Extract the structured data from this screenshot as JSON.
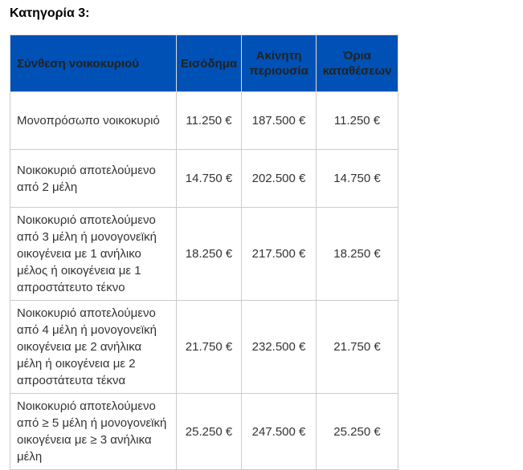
{
  "title": "Κατηγορία 3:",
  "headers": [
    "Σύνθεση νοικοκυριού",
    "Εισόδημα",
    "Ακίνητη περιουσία",
    "Όρια καταθέσεων"
  ],
  "rows": [
    {
      "composition": "Μονοπρόσωπο νοικοκυριό",
      "income": "11.250 €",
      "property": "187.500 €",
      "deposits": "11.250 €"
    },
    {
      "composition": "Νοικοκυριό αποτελούμενο από 2 μέλη",
      "income": "14.750 €",
      "property": "202.500 €",
      "deposits": "14.750 €"
    },
    {
      "composition": "Νοικοκυριό αποτελούμενο από 3 μέλη ή μονογονεϊκή οικογένεια με 1 ανήλικο μέλος ή οικογένεια με 1 απροστάτευτο τέκνο",
      "income": "18.250 €",
      "property": "217.500 €",
      "deposits": "18.250 €"
    },
    {
      "composition": "Νοικοκυριό αποτελούμενο από 4 μέλη ή μονογονεϊκή οικογένεια με 2 ανήλικα μέλη ή οικογένεια με 2 απροστάτευτα τέκνα",
      "income": "21.750 €",
      "property": "232.500 €",
      "deposits": "21.750 €"
    },
    {
      "composition": "Νοικοκυριό αποτελούμενο από ≥ 5 μέλη ή μονογονεϊκή οικογένεια με ≥ 3 ανήλικα μέλη",
      "income": "25.250 €",
      "property": "247.500 €",
      "deposits": "25.250 €"
    }
  ],
  "colors": {
    "header_bg": "#0051b5"
  }
}
